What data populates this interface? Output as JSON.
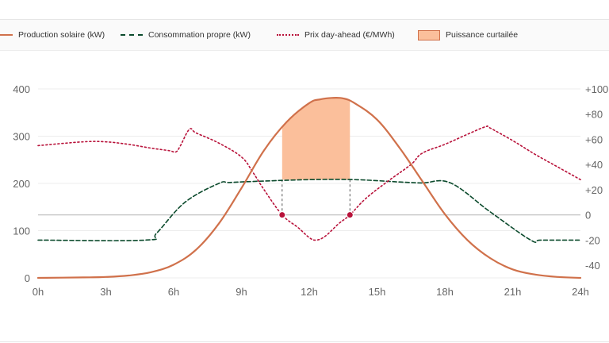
{
  "legend": {
    "solar": "Production solaire (kW)",
    "consumption": "Consommation propre (kW)",
    "price": "Prix day-ahead (€/MWh)",
    "curtailed": "Puissance curtailée"
  },
  "colors": {
    "solar": "#d0714b",
    "consumption": "#0b4a2c",
    "price": "#b8123a",
    "curtailed_fill": "#fbbf9b",
    "grid": "#ececec",
    "zero_line": "#bbbbbb"
  },
  "chart_data": {
    "type": "line",
    "x_ticks": [
      "0h",
      "3h",
      "6h",
      "9h",
      "12h",
      "15h",
      "18h",
      "21h",
      "24h"
    ],
    "y_left_ticks": [
      "0",
      "100",
      "200",
      "300",
      "400"
    ],
    "y_right_ticks": [
      "-40",
      "-20",
      "0",
      "+20",
      "+40",
      "+60",
      "+80",
      "+100"
    ],
    "y_left_range": [
      0,
      400
    ],
    "y_right_range": [
      -50,
      100
    ],
    "x_range": [
      0,
      24
    ],
    "grid": true,
    "legend_position": "top",
    "series": [
      {
        "name": "Production solaire (kW)",
        "axis": "left",
        "style": "solid",
        "x": [
          0,
          2,
          3,
          4,
          5,
          6,
          7,
          8,
          9,
          10,
          11,
          12,
          12.5,
          13,
          13.5,
          14,
          15,
          16,
          17,
          18,
          19,
          20,
          21,
          22,
          23,
          24
        ],
        "y": [
          0,
          1,
          2,
          5,
          12,
          28,
          60,
          115,
          190,
          270,
          330,
          370,
          378,
          381,
          380,
          370,
          335,
          275,
          205,
          135,
          80,
          42,
          18,
          7,
          2,
          0
        ]
      },
      {
        "name": "Consommation propre (kW)",
        "axis": "left",
        "style": "dashed",
        "x": [
          0,
          4.75,
          5.25,
          6.5,
          8,
          8.5,
          10,
          12,
          14,
          16,
          17,
          18.25,
          20,
          21.8,
          22.25,
          24
        ],
        "y": [
          80,
          80,
          95,
          160,
          200,
          202,
          205,
          208,
          208,
          203,
          201,
          201,
          140,
          80,
          80,
          80
        ]
      },
      {
        "name": "Prix day-ahead (€/MWh)",
        "axis": "right",
        "style": "dotted",
        "x": [
          0,
          2,
          3,
          4,
          5,
          5.8,
          6.1,
          6.3,
          6.7,
          7,
          8,
          9,
          9.5,
          10,
          10.8,
          11.5,
          12,
          12.3,
          12.7,
          13.3,
          13.8,
          14.5,
          15.5,
          16.5,
          17,
          18,
          19,
          19.8,
          20,
          21,
          22,
          23,
          24
        ],
        "y": [
          55,
          58,
          58,
          56,
          53,
          51,
          50,
          55,
          68,
          65,
          57,
          46,
          34,
          20,
          0,
          -10,
          -18,
          -20,
          -17,
          -7,
          0,
          13,
          27,
          40,
          49,
          56,
          64,
          70,
          69,
          59,
          48,
          38,
          28
        ]
      }
    ],
    "curtailed_area": {
      "name": "Puissance curtailée",
      "x_start": 10.8,
      "x_end": 13.8,
      "base_kw": 208
    },
    "markers": [
      {
        "x": 10.8,
        "y": 0,
        "axis": "right"
      },
      {
        "x": 13.8,
        "y": 0,
        "axis": "right"
      }
    ]
  }
}
